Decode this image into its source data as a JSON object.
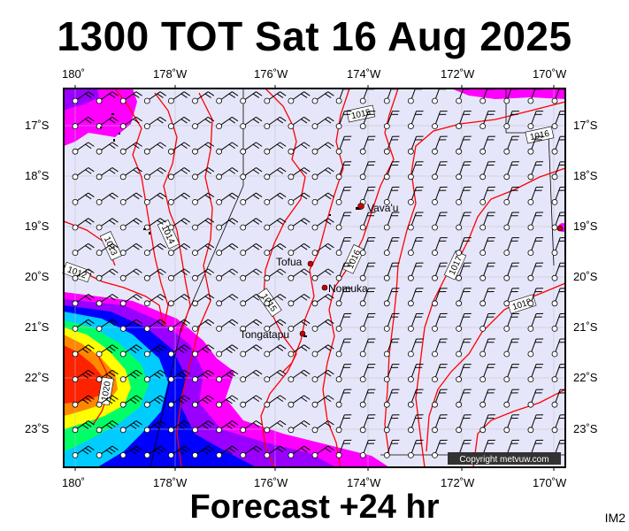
{
  "title": "1300 TOT Sat 16 Aug 2025",
  "footer": "Forecast +24 hr",
  "badge": "IM2",
  "copyright": "Copyright metvuw.com",
  "lon_labels": [
    "180˚",
    "178˚W",
    "176˚W",
    "174˚W",
    "172˚W",
    "170˚W"
  ],
  "lat_labels": [
    "17˚S",
    "18˚S",
    "19˚S",
    "20˚S",
    "21˚S",
    "22˚S",
    "23˚S"
  ],
  "places": [
    "Vava'u",
    "Tofua",
    "Nomuka",
    "Tongatapu"
  ],
  "isobars": [
    "1015",
    "1016",
    "1013",
    "1014",
    "1012",
    "1016",
    "1017",
    "1015",
    "1018",
    "1020"
  ],
  "colors": {
    "background": "#e6e6fa",
    "isobar": "#ff0000",
    "barb": "#000000",
    "magenta": "#ff00ff",
    "purple": "#9900ff",
    "blue": "#0000ff",
    "cyan": "#00ccff",
    "green": "#00ff66",
    "yellow": "#ffff00",
    "orange": "#ff8800",
    "red": "#ff2200",
    "place_marker": "#cc0000"
  }
}
